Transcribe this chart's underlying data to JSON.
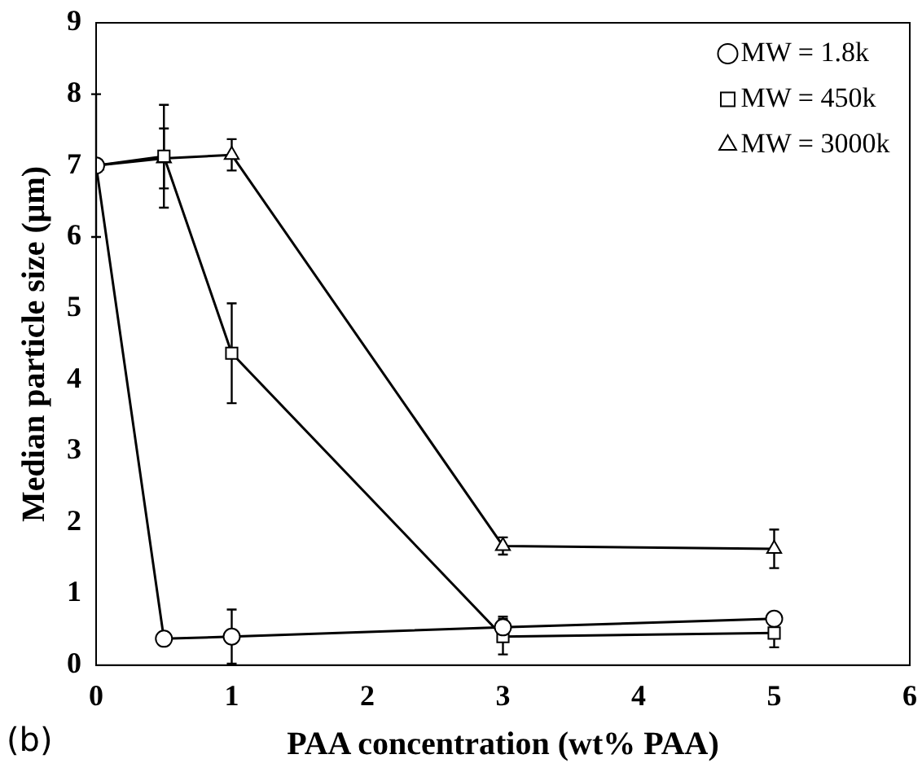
{
  "chart_data": {
    "type": "line",
    "xlabel": "PAA concentration (wt% PAA)",
    "ylabel": "Median particle size (μm)",
    "x": [
      0,
      0.5,
      1,
      3,
      5
    ],
    "series": [
      {
        "name": "MW = 1.8k",
        "color": "#000000",
        "marker": "circle",
        "values": [
          7.0,
          0.37,
          0.4,
          0.53,
          0.65
        ],
        "errors": [
          1.0,
          null,
          0.38,
          0.15,
          null
        ]
      },
      {
        "name": "MW = 450k",
        "color": "#000000",
        "marker": "square",
        "values": [
          7.0,
          7.13,
          4.37,
          0.4,
          0.45
        ],
        "errors": [
          null,
          0.72,
          0.7,
          0.25,
          0.2
        ]
      },
      {
        "name": "MW = 3000k",
        "color": "#000000",
        "marker": "triangle",
        "values": [
          7.0,
          7.1,
          7.15,
          1.67,
          1.63
        ],
        "errors": [
          null,
          0.42,
          0.22,
          0.12,
          0.27
        ]
      }
    ],
    "xlim": [
      0,
      6
    ],
    "xticks": [
      0,
      1,
      2,
      3,
      4,
      5,
      6
    ],
    "ylim": [
      0,
      9
    ],
    "yticks": [
      0,
      1,
      2,
      3,
      4,
      5,
      6,
      7,
      8,
      9
    ],
    "grid": false,
    "legend": "top right",
    "line_style": "solid",
    "annotations": [
      "(b)"
    ]
  }
}
